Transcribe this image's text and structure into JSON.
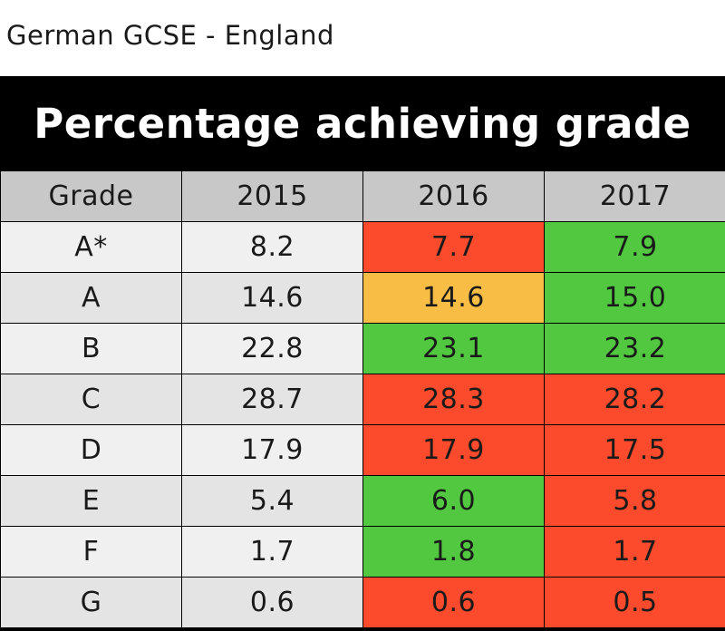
{
  "subtitle": "German GCSE - England",
  "title": "Percentage achieving grade",
  "colors": {
    "red": "#fb4b2c",
    "green": "#51c840",
    "amber": "#f8bd45",
    "header_bg": "#c8c8c8",
    "title_bg": "#000000"
  },
  "chart_data": {
    "type": "table",
    "title": "Percentage achieving grade",
    "subtitle": "German GCSE - England",
    "columns": [
      "Grade",
      "2015",
      "2016",
      "2017"
    ],
    "rows": [
      {
        "grade": "A*",
        "values": [
          "8.2",
          "7.7",
          "7.9"
        ],
        "colors": [
          "",
          "red",
          "green"
        ]
      },
      {
        "grade": "A",
        "values": [
          "14.6",
          "14.6",
          "15.0"
        ],
        "colors": [
          "",
          "amber",
          "green"
        ]
      },
      {
        "grade": "B",
        "values": [
          "22.8",
          "23.1",
          "23.2"
        ],
        "colors": [
          "",
          "green",
          "green"
        ]
      },
      {
        "grade": "C",
        "values": [
          "28.7",
          "28.3",
          "28.2"
        ],
        "colors": [
          "",
          "red",
          "red"
        ]
      },
      {
        "grade": "D",
        "values": [
          "17.9",
          "17.9",
          "17.5"
        ],
        "colors": [
          "",
          "red",
          "red"
        ]
      },
      {
        "grade": "E",
        "values": [
          "5.4",
          "6.0",
          "5.8"
        ],
        "colors": [
          "",
          "green",
          "red"
        ]
      },
      {
        "grade": "F",
        "values": [
          "1.7",
          "1.8",
          "1.7"
        ],
        "colors": [
          "",
          "green",
          "red"
        ]
      },
      {
        "grade": "G",
        "values": [
          "0.6",
          "0.6",
          "0.5"
        ],
        "colors": [
          "",
          "red",
          "red"
        ]
      }
    ]
  }
}
